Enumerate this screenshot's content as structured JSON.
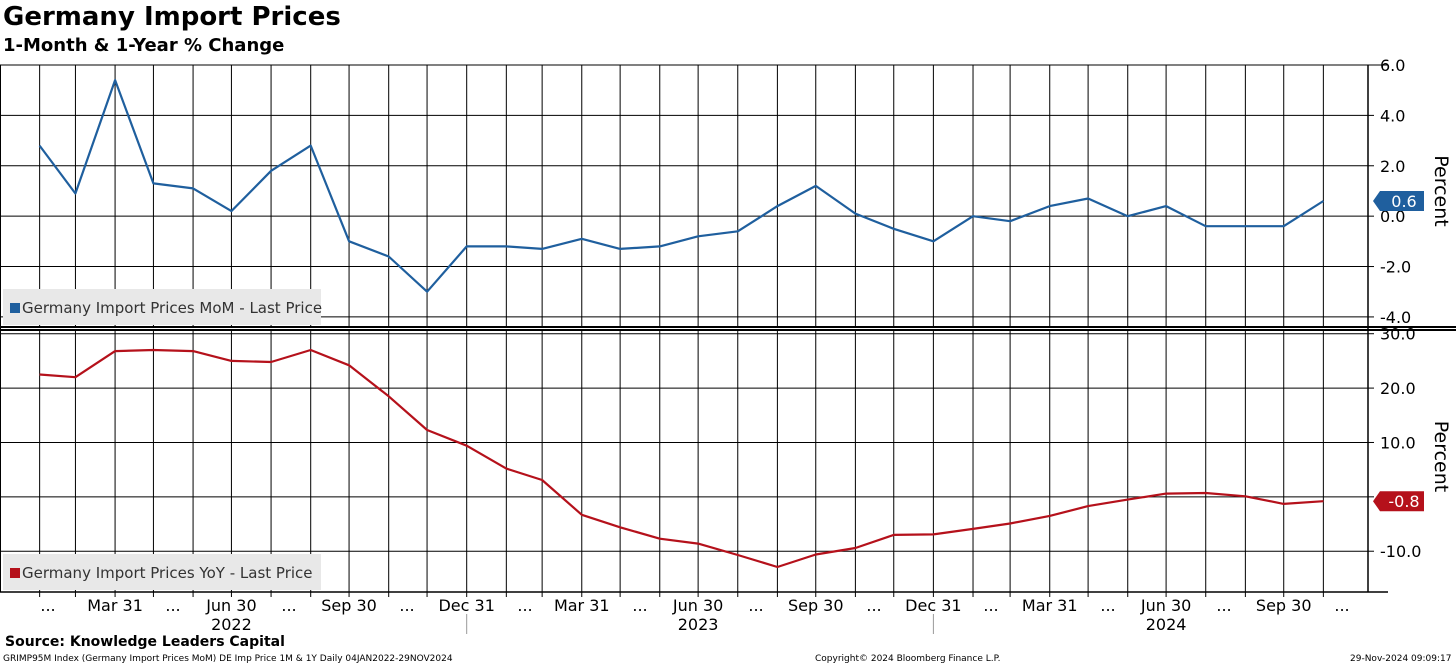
{
  "title": "Germany Import Prices",
  "subtitle": "1-Month & 1-Year % Change",
  "source": "Source: Knowledge Leaders Capital",
  "footer": {
    "left": "GRIMP95M Index (Germany Import Prices MoM) DE Imp Price 1M & 1Y  Daily 04JAN2022-29NOV2024",
    "center": "Copyright© 2024 Bloomberg Finance L.P.",
    "right": "29-Nov-2024 09:09:17"
  },
  "chart_data": [
    {
      "type": "line",
      "panel": "top",
      "ylabel": "Percent",
      "ylim": [
        -4.4,
        6.0
      ],
      "yticks": [
        6.0,
        4.0,
        2.0,
        0.0,
        -2.0,
        -4.0
      ],
      "ytick_labels": [
        "6.0",
        "4.0",
        "2.0",
        "0.0",
        "-2.0",
        "-4.0"
      ],
      "grid": true,
      "legend_position": "bottom-left",
      "color": "#1f5f9e",
      "last_value_label": "0.6",
      "series": [
        {
          "name": "Germany Import Prices MoM - Last Price",
          "x": [
            "2022-01-31",
            "2022-02-28",
            "2022-03-31",
            "2022-04-30",
            "2022-05-31",
            "2022-06-30",
            "2022-07-31",
            "2022-08-31",
            "2022-09-30",
            "2022-10-31",
            "2022-11-30",
            "2022-12-31",
            "2023-01-31",
            "2023-02-28",
            "2023-03-31",
            "2023-04-30",
            "2023-05-31",
            "2023-06-30",
            "2023-07-31",
            "2023-08-31",
            "2023-09-30",
            "2023-10-31",
            "2023-11-30",
            "2023-12-31",
            "2024-01-31",
            "2024-02-29",
            "2024-03-31",
            "2024-04-30",
            "2024-05-31",
            "2024-06-30",
            "2024-07-31",
            "2024-08-31",
            "2024-09-30",
            "2024-10-31"
          ],
          "values": [
            2.8,
            0.9,
            5.4,
            1.3,
            1.1,
            0.2,
            1.8,
            2.8,
            -1.0,
            -1.6,
            -3.0,
            -1.2,
            -1.2,
            -1.3,
            -0.9,
            -1.3,
            -1.2,
            -0.8,
            -0.6,
            0.4,
            1.2,
            0.1,
            -0.5,
            -1.0,
            0.0,
            -0.2,
            0.4,
            0.7,
            0.0,
            0.4,
            -0.4,
            -0.4,
            -0.4,
            0.6
          ]
        }
      ]
    },
    {
      "type": "line",
      "panel": "bottom",
      "ylabel": "Percent",
      "ylim": [
        -17.5,
        30.5
      ],
      "yticks": [
        30.0,
        20.0,
        10.0,
        0.0,
        -10.0
      ],
      "ytick_labels": [
        "30.0",
        "20.0",
        "10.0",
        "",
        "-10.0"
      ],
      "grid": true,
      "legend_position": "bottom-left",
      "color": "#b5111b",
      "last_value_label": "-0.8",
      "series": [
        {
          "name": "Germany Import Prices YoY - Last Price",
          "x": [
            "2022-01-31",
            "2022-02-28",
            "2022-03-31",
            "2022-04-30",
            "2022-05-31",
            "2022-06-30",
            "2022-07-31",
            "2022-08-31",
            "2022-09-30",
            "2022-10-31",
            "2022-11-30",
            "2022-12-31",
            "2023-01-31",
            "2023-02-28",
            "2023-03-31",
            "2023-04-30",
            "2023-05-31",
            "2023-06-30",
            "2023-07-31",
            "2023-08-31",
            "2023-09-30",
            "2023-10-31",
            "2023-11-30",
            "2023-12-31",
            "2024-01-31",
            "2024-02-29",
            "2024-03-31",
            "2024-04-30",
            "2024-05-31",
            "2024-06-30",
            "2024-07-31",
            "2024-08-31",
            "2024-09-30",
            "2024-10-31"
          ],
          "values": [
            22.5,
            22.0,
            26.8,
            27.0,
            26.8,
            25.0,
            24.8,
            27.0,
            24.2,
            18.5,
            12.3,
            9.4,
            5.2,
            3.1,
            -3.3,
            -5.6,
            -7.7,
            -8.6,
            -10.7,
            -12.9,
            -10.6,
            -9.4,
            -7.0,
            -6.9,
            -5.9,
            -4.9,
            -3.5,
            -1.7,
            -0.5,
            0.6,
            0.7,
            0.1,
            -1.3,
            -0.8
          ]
        }
      ]
    }
  ],
  "x_axis": {
    "month_labels": [
      {
        "date": "2022-03-31",
        "label": "Mar 31"
      },
      {
        "date": "2022-06-30",
        "label": "Jun 30"
      },
      {
        "date": "2022-09-30",
        "label": "Sep 30"
      },
      {
        "date": "2022-12-31",
        "label": "Dec 31"
      },
      {
        "date": "2023-03-31",
        "label": "Mar 31"
      },
      {
        "date": "2023-06-30",
        "label": "Jun 30"
      },
      {
        "date": "2023-09-30",
        "label": "Sep 30"
      },
      {
        "date": "2023-12-31",
        "label": "Dec 31"
      },
      {
        "date": "2024-03-31",
        "label": "Mar 31"
      },
      {
        "date": "2024-06-30",
        "label": "Jun 30"
      },
      {
        "date": "2024-09-30",
        "label": "Sep 30"
      }
    ],
    "ellipsis": "...",
    "year_labels": [
      {
        "date": "2022-06-30",
        "label": "2022"
      },
      {
        "date": "2023-06-30",
        "label": "2023"
      },
      {
        "date": "2024-06-30",
        "label": "2024"
      }
    ]
  }
}
